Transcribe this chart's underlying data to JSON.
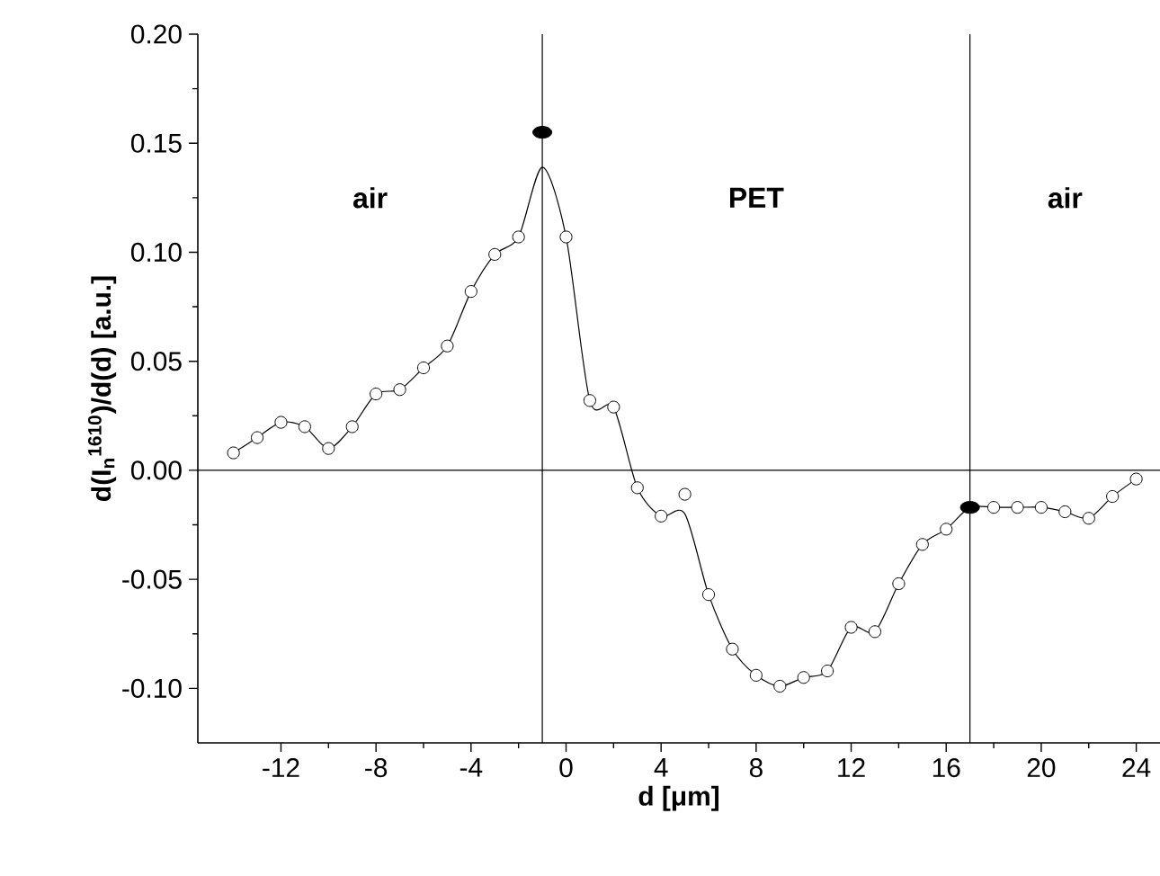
{
  "chart_data": {
    "type": "scatter",
    "xlabel": "d [μm]",
    "ylabel": "d(I$_{n}$$^{1610}$)/d(d) [a.u.]",
    "xlim": [
      -15.5,
      25
    ],
    "ylim": [
      -0.125,
      0.2
    ],
    "xticks": [
      -12,
      -8,
      -4,
      0,
      4,
      8,
      12,
      16,
      20,
      24
    ],
    "yticks": [
      {
        "value": -0.1,
        "label": "-0.10"
      },
      {
        "value": -0.05,
        "label": "-0.05"
      },
      {
        "value": 0,
        "label": "0.00"
      },
      {
        "value": 0.05,
        "label": "0.05"
      },
      {
        "value": 0.1,
        "label": "0.10"
      },
      {
        "value": 0.15,
        "label": "0.15"
      },
      {
        "value": 0.2,
        "label": "0.20"
      }
    ],
    "series": [
      {
        "type": "line",
        "color": "#000000",
        "marker": "none",
        "x": [
          -14,
          -13,
          -12,
          -11,
          -10,
          -9,
          -8,
          -7,
          -6,
          -5,
          -4,
          -3,
          -2,
          -1,
          0,
          1,
          2,
          3,
          4,
          5,
          6,
          7,
          8,
          9,
          10,
          11,
          12,
          13,
          14,
          15,
          16,
          17,
          18,
          19,
          20,
          21,
          22,
          23,
          24
        ],
        "values": [
          0.008,
          0.015,
          0.022,
          0.02,
          0.01,
          0.02,
          0.035,
          0.037,
          0.047,
          0.057,
          0.082,
          0.099,
          0.107,
          0.139,
          0.107,
          0.032,
          0.029,
          -0.008,
          -0.021,
          -0.02,
          -0.057,
          -0.082,
          -0.094,
          -0.099,
          -0.095,
          -0.092,
          -0.072,
          -0.074,
          -0.052,
          -0.034,
          -0.027,
          -0.017,
          -0.017,
          -0.017,
          -0.017,
          -0.019,
          -0.022,
          -0.012,
          -0.004
        ]
      },
      {
        "color": "#ffffff",
        "marker": "circle",
        "x": [
          -14,
          -13,
          -12,
          -11,
          -10,
          -9,
          -8,
          -7,
          -6,
          -5,
          -4,
          -3,
          -2,
          0,
          1,
          2,
          3,
          4,
          5,
          6,
          7,
          8,
          9,
          10,
          11,
          12,
          13,
          14,
          15,
          16,
          18,
          19,
          20,
          21,
          22,
          23,
          24
        ],
        "values": [
          0.008,
          0.015,
          0.022,
          0.02,
          0.01,
          0.02,
          0.035,
          0.037,
          0.047,
          0.057,
          0.082,
          0.099,
          0.107,
          0.107,
          0.032,
          0.029,
          -0.008,
          -0.021,
          -0.011,
          -0.057,
          -0.082,
          -0.094,
          -0.099,
          -0.095,
          -0.092,
          -0.072,
          -0.074,
          -0.052,
          -0.034,
          -0.027,
          -0.017,
          -0.017,
          -0.017,
          -0.019,
          -0.022,
          -0.012,
          -0.004
        ]
      },
      {
        "color": "#000000",
        "marker": "circle",
        "x": [
          -1,
          17
        ],
        "values": [
          0.155,
          -0.017
        ]
      }
    ],
    "ref_lines": [
      {
        "axis": "x",
        "value": -1
      },
      {
        "axis": "x",
        "value": 17
      },
      {
        "axis": "y",
        "value": 0
      }
    ],
    "annotations": [
      "air",
      "PET",
      "air"
    ]
  }
}
